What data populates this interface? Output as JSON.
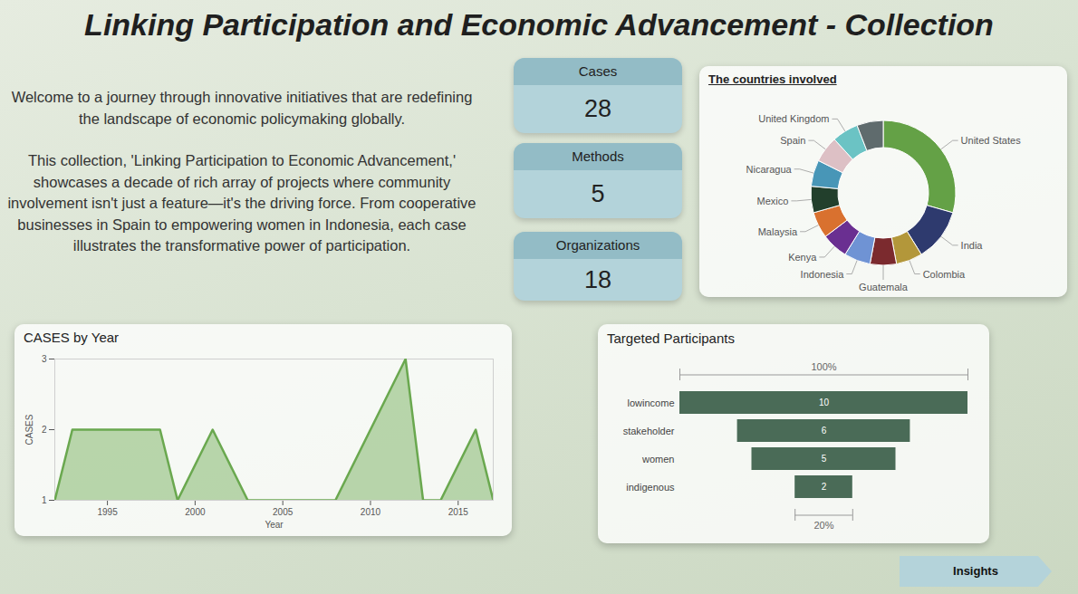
{
  "title": "Linking Participation and Economic Advancement - Collection",
  "intro": [
    "Welcome to a journey through innovative initiatives that are redefining the landscape of economic policymaking globally.",
    "This collection, 'Linking Participation to Economic Advancement,' showcases a decade of rich array of projects where community involvement isn't just a feature—it's the driving force. From cooperative businesses in Spain to empowering women in Indonesia, each case illustrates the transformative power of participation."
  ],
  "cards": [
    {
      "label": "Cases",
      "value": 28
    },
    {
      "label": "Methods",
      "value": 5
    },
    {
      "label": "Organizations",
      "value": 18
    }
  ],
  "button": "Insights",
  "chart_data": [
    {
      "type": "pie",
      "title": "The countries involved",
      "categories": [
        "United States",
        "India",
        "Colombia",
        "Guatemala",
        "Indonesia",
        "Kenya",
        "Malaysia",
        "Mexico",
        "Nicaragua",
        "Spain",
        "United Kingdom",
        null
      ],
      "values": [
        10,
        4,
        2,
        2,
        2,
        2,
        2,
        2,
        2,
        2,
        2,
        2
      ],
      "colors": [
        "#64a146",
        "#2e3a6e",
        "#b3973a",
        "#7b2a2e",
        "#6f93d4",
        "#6a2f91",
        "#d9712f",
        "#223f2c",
        "#4896b7",
        "#ddc0c5",
        "#6bc3c4",
        "#5f6b6d"
      ]
    },
    {
      "type": "area",
      "title": "CASES by Year",
      "x": [
        1992,
        1993,
        1998,
        1999,
        2001,
        2003,
        2008,
        2012,
        2013,
        2014,
        2016,
        2017
      ],
      "values": [
        1,
        2,
        2,
        1,
        2,
        1,
        1,
        3,
        1,
        1,
        2,
        1
      ],
      "xlim": [
        1992,
        2017
      ],
      "xticks": [
        1995,
        2000,
        2005,
        2010,
        2015
      ],
      "ylim": [
        1,
        3
      ],
      "yticks": [
        1,
        2,
        3
      ],
      "x_label": "Year",
      "y_label": "CASES",
      "color": "#6aa84f"
    },
    {
      "type": "funnel",
      "title": "Targeted Participants",
      "orientation": "horizontal",
      "categories": [
        "lowincome",
        "stakeholder",
        "women",
        "indigenous"
      ],
      "values": [
        10,
        6,
        5,
        2
      ],
      "data_labels": true,
      "color": "#4a6b57",
      "annotations": [
        {
          "value": 100,
          "label": "100%"
        },
        {
          "value": 20,
          "label": "20%"
        }
      ]
    }
  ]
}
